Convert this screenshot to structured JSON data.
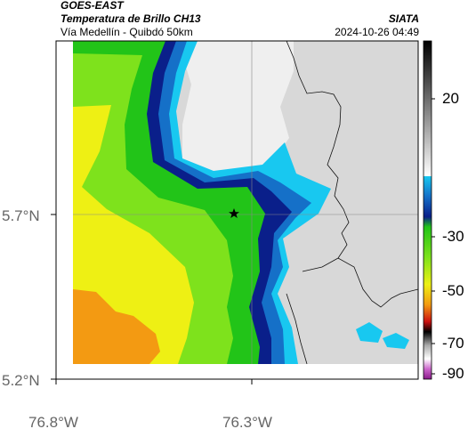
{
  "header": {
    "satellite": "GOES-EAST",
    "product": "Temperatura de Brillo CH13",
    "region": "Vía Medellín - Quibdó 50km",
    "org": "SIATA",
    "datetime": "2024-10-26 04:49"
  },
  "axes": {
    "y_ticks": [
      "5.7°N",
      "5.2°N"
    ],
    "x_ticks": [
      "76.8°W",
      "76.3°W"
    ]
  },
  "colorbar": {
    "ticks": [
      "20",
      "-30",
      "-50",
      "-70",
      "-90"
    ]
  },
  "colors": {
    "warm_gray": "#d8d8d8",
    "light_gray": "#efefef",
    "cyan": "#18c8f0",
    "blue": "#1570c8",
    "navy": "#0a1f8a",
    "green": "#22c418",
    "lime": "#7ee21c",
    "yellow": "#eef014",
    "orange": "#f39a12"
  },
  "marker": {
    "icon": "star-icon"
  }
}
